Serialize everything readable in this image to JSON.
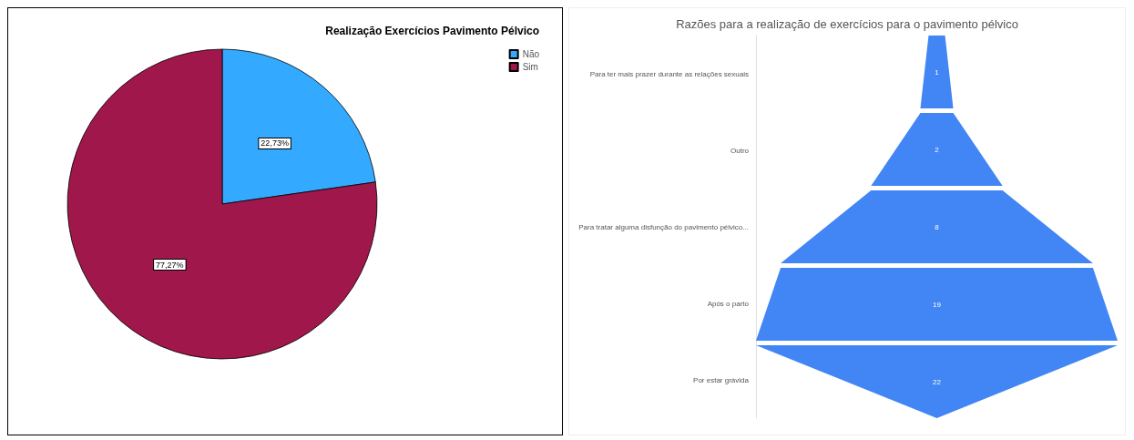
{
  "chart_data": [
    {
      "type": "pie",
      "title": "Realização Exercícios Pavimento Pélvico",
      "categories": [
        "Não",
        "Sim"
      ],
      "values": [
        22.73,
        77.27
      ],
      "value_labels": [
        "22,73%",
        "77,27%"
      ],
      "colors": [
        "#33aaff",
        "#a0174c"
      ],
      "legend": "top right"
    },
    {
      "type": "other",
      "title": "Razões para a realização de exercícios para o pavimento pélvico",
      "categories": [
        "Para ter mais prazer durante as relações sexuais",
        "Outro",
        "Para tratar alguma disfunção do pavimento pélvico...",
        "Após o parto",
        "Por estar grávida"
      ],
      "values": [
        1,
        2,
        8,
        19,
        22
      ],
      "color": "#4285f4",
      "data_labels": true
    }
  ]
}
